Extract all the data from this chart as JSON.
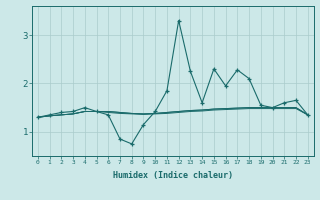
{
  "xlabel": "Humidex (Indice chaleur)",
  "background_color": "#cce8e8",
  "grid_color": "#aacccc",
  "line_color": "#1a6b6b",
  "x_values": [
    0,
    1,
    2,
    3,
    4,
    5,
    6,
    7,
    8,
    9,
    10,
    11,
    12,
    13,
    14,
    15,
    16,
    17,
    18,
    19,
    20,
    21,
    22,
    23
  ],
  "line1": [
    1.3,
    1.35,
    1.4,
    1.42,
    1.5,
    1.42,
    1.35,
    0.85,
    0.75,
    1.15,
    1.42,
    1.85,
    3.3,
    2.25,
    1.6,
    2.3,
    1.95,
    2.28,
    2.1,
    1.55,
    1.5,
    1.6,
    1.65,
    1.35
  ],
  "line2": [
    1.3,
    1.33,
    1.35,
    1.37,
    1.42,
    1.42,
    1.42,
    1.4,
    1.38,
    1.37,
    1.38,
    1.4,
    1.42,
    1.44,
    1.45,
    1.47,
    1.48,
    1.49,
    1.5,
    1.5,
    1.5,
    1.5,
    1.5,
    1.35
  ],
  "line3": [
    1.3,
    1.33,
    1.35,
    1.37,
    1.42,
    1.42,
    1.42,
    1.4,
    1.38,
    1.37,
    1.38,
    1.4,
    1.42,
    1.44,
    1.45,
    1.47,
    1.48,
    1.49,
    1.5,
    1.5,
    1.5,
    1.5,
    1.5,
    1.35
  ],
  "line4": [
    1.3,
    1.33,
    1.35,
    1.37,
    1.42,
    1.42,
    1.4,
    1.38,
    1.37,
    1.36,
    1.37,
    1.38,
    1.4,
    1.42,
    1.43,
    1.45,
    1.46,
    1.47,
    1.48,
    1.48,
    1.48,
    1.48,
    1.48,
    1.35
  ],
  "ylim": [
    0.5,
    3.6
  ],
  "yticks": [
    1,
    2,
    3
  ],
  "xticks": [
    0,
    1,
    2,
    3,
    4,
    5,
    6,
    7,
    8,
    9,
    10,
    11,
    12,
    13,
    14,
    15,
    16,
    17,
    18,
    19,
    20,
    21,
    22,
    23
  ]
}
